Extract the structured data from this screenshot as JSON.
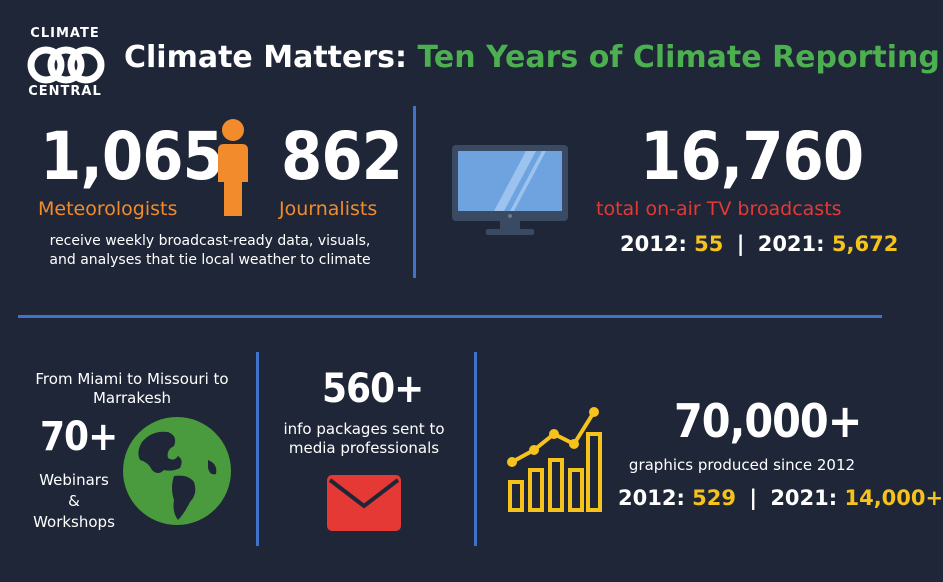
{
  "logo": {
    "top": "CLIMATE",
    "bottom": "CENTRAL"
  },
  "title": {
    "main": "Climate Matters:",
    "sub": "Ten Years of Climate Reporting"
  },
  "meteorologists": {
    "value": "1,065",
    "label": "Meteorologists"
  },
  "journalists": {
    "value": "862",
    "label": "Journalists"
  },
  "weekly_desc": {
    "line1": "receive weekly broadcast-ready data, visuals,",
    "line2": "and analyses that tie local weather to climate"
  },
  "broadcasts": {
    "value": "16,760",
    "label": "total on-air TV broadcasts",
    "year1": "2012:",
    "val1": "55",
    "sep": "|",
    "year2": "2021:",
    "val2": "5,672"
  },
  "webinars": {
    "intro_line1": "From Miami to Missouri to",
    "intro_line2": "Marrakesh",
    "value": "70+",
    "label1": "Webinars",
    "label2": "&",
    "label3": "Workshops"
  },
  "packages": {
    "value": "560+",
    "line1": "info packages sent to",
    "line2": "media professionals"
  },
  "graphics": {
    "value": "70,000+",
    "label": "graphics produced since 2012",
    "year1": "2012:",
    "val1": "529",
    "sep": "|",
    "year2": "2021:",
    "val2": "14,000+"
  },
  "colors": {
    "background": "#1f2637",
    "green": "#4caf50",
    "orange": "#f28b2c",
    "red": "#e53935",
    "yellow": "#f6c21c",
    "divider": "#3f72c9"
  },
  "icons": [
    "logo-circles-icon",
    "person-icon",
    "monitor-icon",
    "globe-icon",
    "envelope-icon",
    "bar-chart-icon"
  ]
}
